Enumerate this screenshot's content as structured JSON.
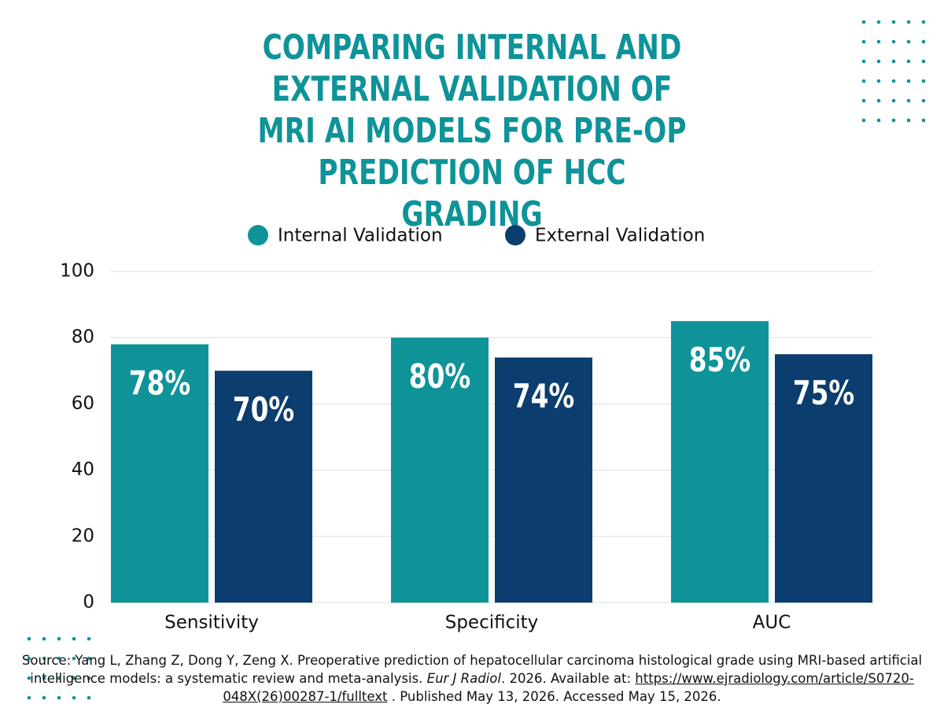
{
  "chart_data": {
    "type": "bar",
    "title": "COMPARING INTERNAL AND EXTERNAL VALIDATION OF MRI AI MODELS FOR PRE-OP PREDICTION OF HCC GRADING",
    "categories": [
      "Sensitivity",
      "Specificity",
      "AUC"
    ],
    "series": [
      {
        "name": "Internal Validation",
        "color": "#0e9399",
        "values": [
          78,
          80,
          85
        ],
        "value_labels": [
          "78%",
          "80%",
          "85%"
        ]
      },
      {
        "name": "External Validation",
        "color": "#0b3d6e",
        "values": [
          70,
          74,
          75
        ],
        "value_labels": [
          "70%",
          "74%",
          "75%"
        ]
      }
    ],
    "ylim": [
      0,
      100
    ],
    "yticks": [
      0,
      20,
      40,
      60,
      80,
      100
    ],
    "grid": true,
    "legend": "top",
    "source": [
      "Source: Yang L, Zhang Z, Dong Y, Zeng X. Preoperative prediction of hepatocellular carcinoma histological grade using MRI-based artificial intelligence models: a systematic review and meta-analysis.",
      "Eur J Radiol",
      ". 2026. Available at:",
      "https://www.ejradiology.com/article/S0720-048X(26)00287-1/fulltext",
      ". Published May 13, 2026. Accessed May 15, 2026."
    ]
  }
}
